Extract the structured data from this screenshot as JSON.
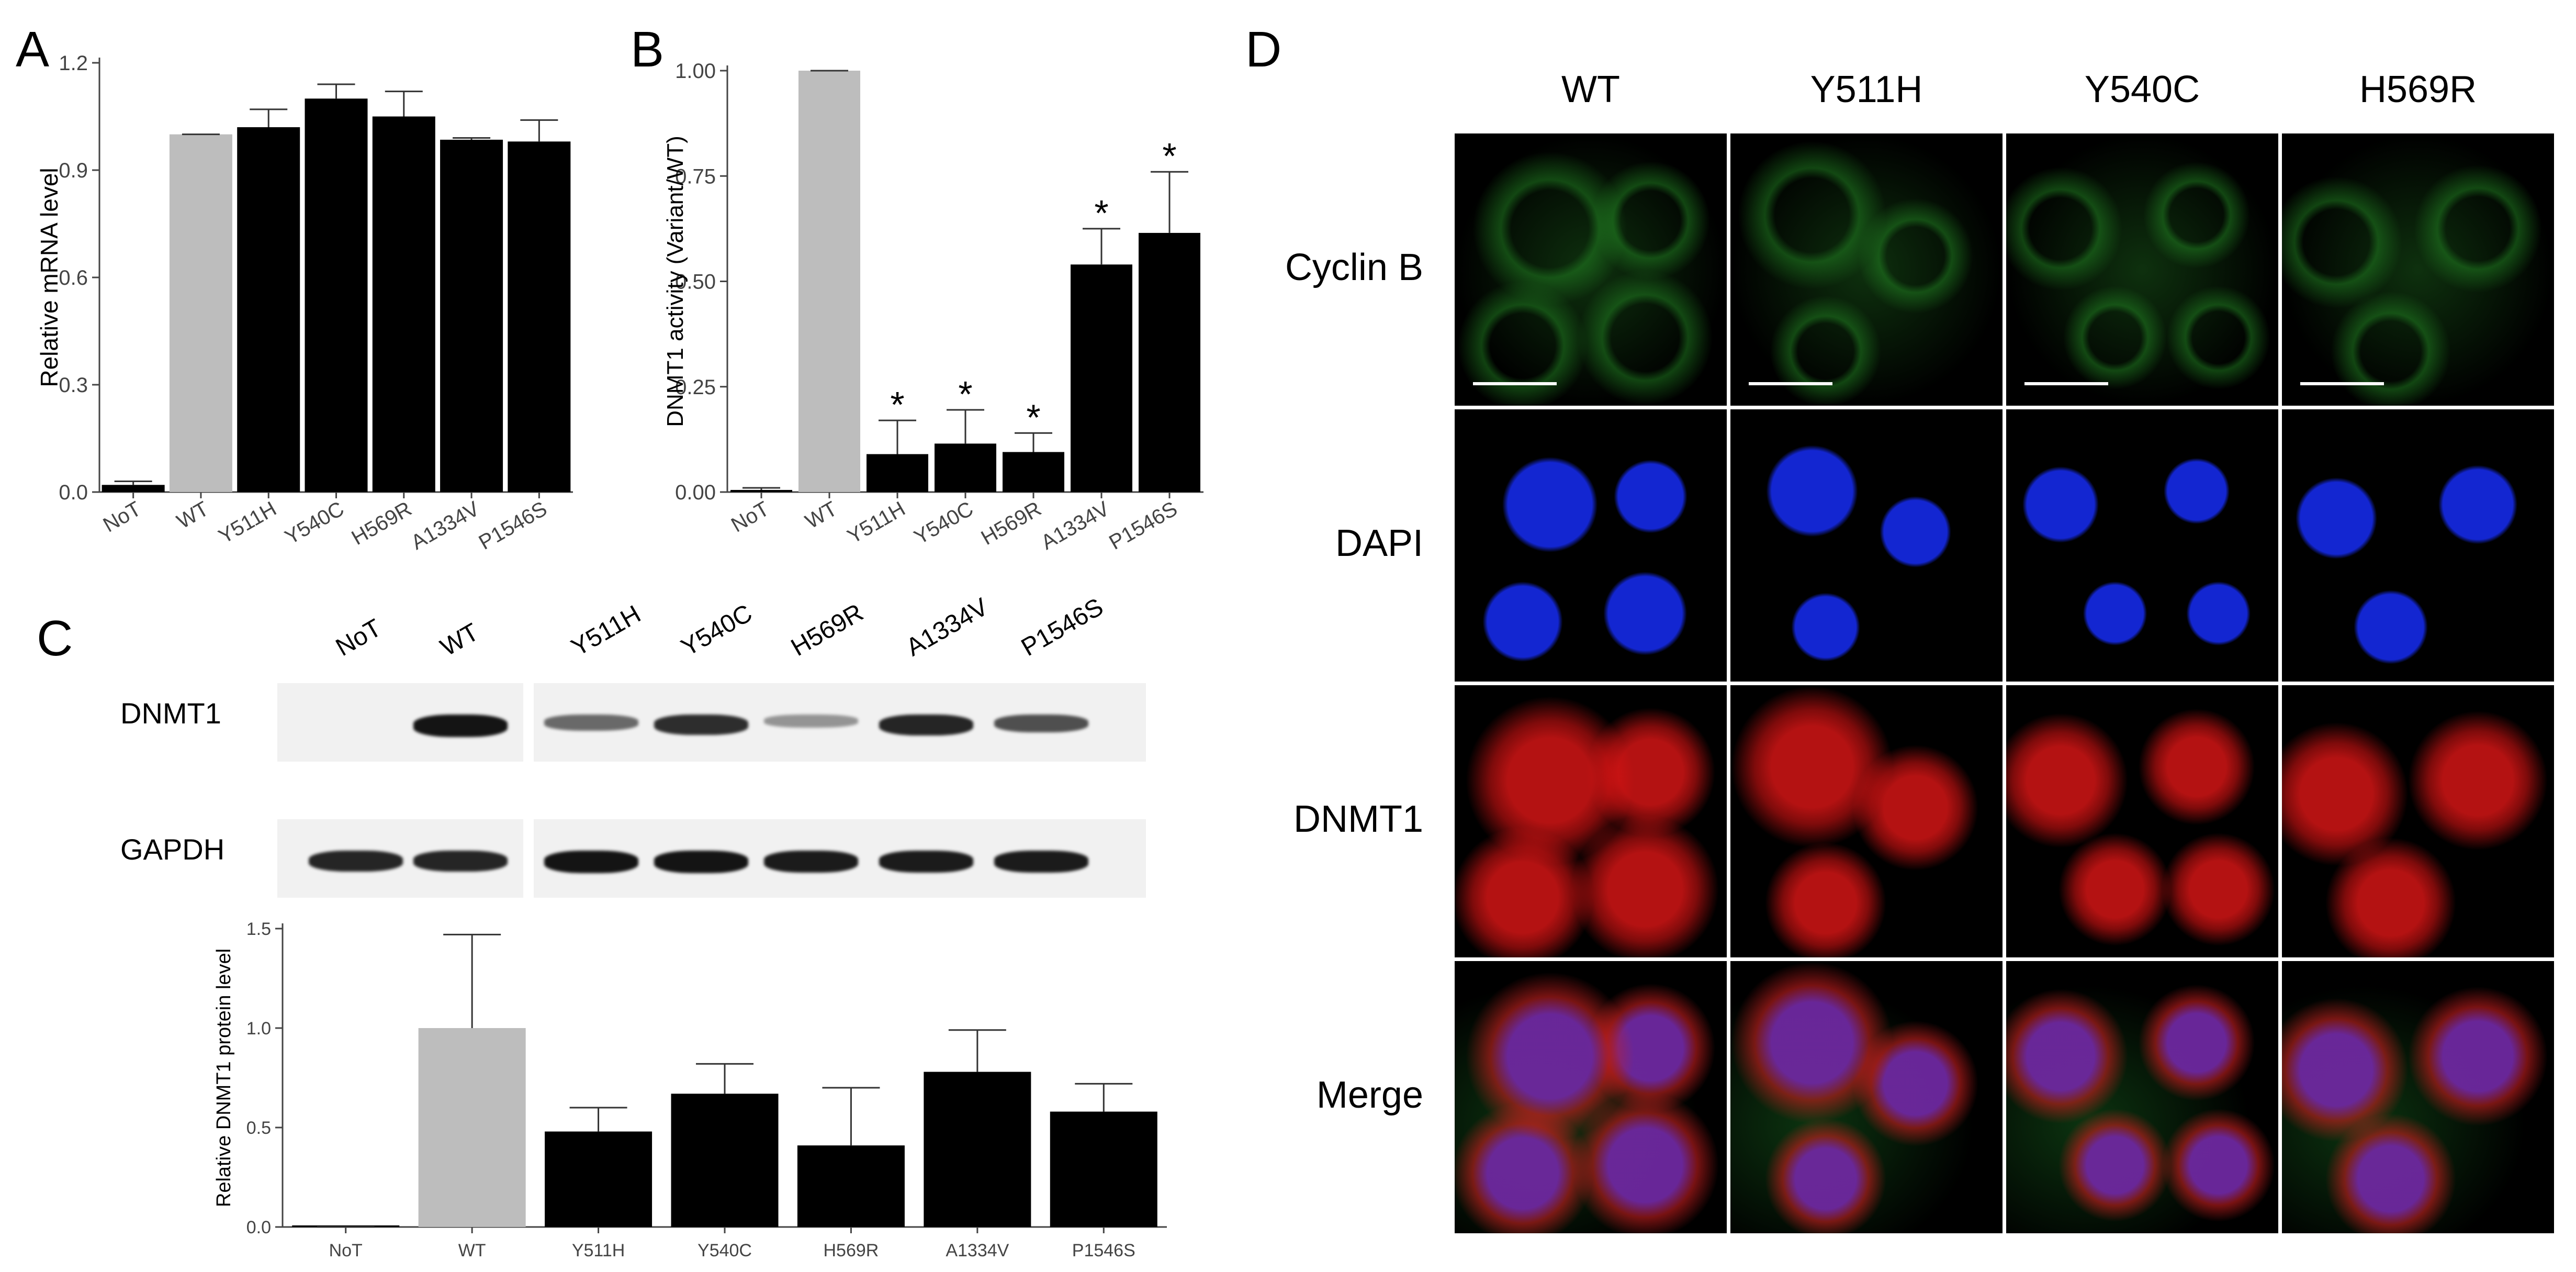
{
  "panels": {
    "A": {
      "letter": "A"
    },
    "B": {
      "letter": "B"
    },
    "C": {
      "letter": "C"
    },
    "D": {
      "letter": "D"
    }
  },
  "chart_data": [
    {
      "id": "A",
      "type": "bar",
      "categories": [
        "NoT",
        "WT",
        "Y511H",
        "Y540C",
        "H569R",
        "A1334V",
        "P1546S"
      ],
      "values": [
        0.02,
        1.0,
        1.02,
        1.1,
        1.05,
        0.985,
        0.98
      ],
      "errors": [
        0.01,
        0.0,
        0.05,
        0.04,
        0.07,
        0.005,
        0.06
      ],
      "colors": [
        "#000000",
        "#bdbdbd",
        "#000000",
        "#000000",
        "#000000",
        "#000000",
        "#000000"
      ],
      "ylabel": "Relative mRNA level",
      "xlabel": "",
      "ylim": [
        0,
        1.2
      ],
      "yticks": [
        "0.0",
        "0.3",
        "0.6",
        "0.9",
        "1.2"
      ],
      "ytick_values": [
        0,
        0.3,
        0.6,
        0.9,
        1.2
      ],
      "grid": false
    },
    {
      "id": "B",
      "type": "bar",
      "categories": [
        "NoT",
        "WT",
        "Y511H",
        "Y540C",
        "H569R",
        "A1334V",
        "P1546S"
      ],
      "values": [
        0.005,
        1.0,
        0.09,
        0.115,
        0.095,
        0.54,
        0.615
      ],
      "errors": [
        0.005,
        0.0,
        0.08,
        0.08,
        0.045,
        0.085,
        0.145
      ],
      "colors": [
        "#000000",
        "#bdbdbd",
        "#000000",
        "#000000",
        "#000000",
        "#000000",
        "#000000"
      ],
      "significance": [
        "",
        "",
        "*",
        "*",
        "*",
        "*",
        "*"
      ],
      "ylabel": "DNMT1 activity (Variant/WT)",
      "xlabel": "",
      "ylim": [
        0,
        1.0
      ],
      "yticks": [
        "0.00",
        "0.25",
        "0.50",
        "0.75",
        "1.00"
      ],
      "ytick_values": [
        0,
        0.25,
        0.5,
        0.75,
        1.0
      ],
      "grid": false
    },
    {
      "id": "C",
      "type": "bar",
      "categories": [
        "NoT",
        "WT",
        "Y511H",
        "Y540C",
        "H569R",
        "A1334V",
        "P1546S"
      ],
      "values": [
        0.0,
        1.0,
        0.48,
        0.67,
        0.41,
        0.78,
        0.58
      ],
      "errors": [
        0.0,
        0.47,
        0.12,
        0.15,
        0.29,
        0.21,
        0.14
      ],
      "colors": [
        "#000000",
        "#bdbdbd",
        "#000000",
        "#000000",
        "#000000",
        "#000000",
        "#000000"
      ],
      "ylabel": "Relative DNMT1 protein level",
      "xlabel": "",
      "ylim": [
        0,
        1.5
      ],
      "yticks": [
        "0.0",
        "0.5",
        "1.0",
        "1.5"
      ],
      "ytick_values": [
        0,
        0.5,
        1.0,
        1.5
      ],
      "grid": false
    }
  ],
  "blot": {
    "lanes": [
      "NoT",
      "WT",
      "Y511H",
      "Y540C",
      "H569R",
      "A1334V",
      "P1546S"
    ],
    "rows": [
      {
        "label": "DNMT1",
        "intensities": [
          0.0,
          0.95,
          0.45,
          0.8,
          0.2,
          0.85,
          0.6
        ]
      },
      {
        "label": "GAPDH",
        "intensities": [
          0.85,
          0.85,
          0.95,
          0.95,
          0.9,
          0.9,
          0.9
        ]
      }
    ]
  },
  "microscopy": {
    "columns": [
      "WT",
      "Y511H",
      "Y540C",
      "H569R"
    ],
    "rows": [
      {
        "label": "Cyclin B",
        "channel": "green",
        "color": "#1f8a1f"
      },
      {
        "label": "DAPI",
        "channel": "blue",
        "color": "#1a2ee0"
      },
      {
        "label": "DNMT1",
        "channel": "red",
        "color": "#e01010"
      },
      {
        "label": "Merge",
        "channel": "merge",
        "color": "#7a2a8a"
      }
    ]
  }
}
